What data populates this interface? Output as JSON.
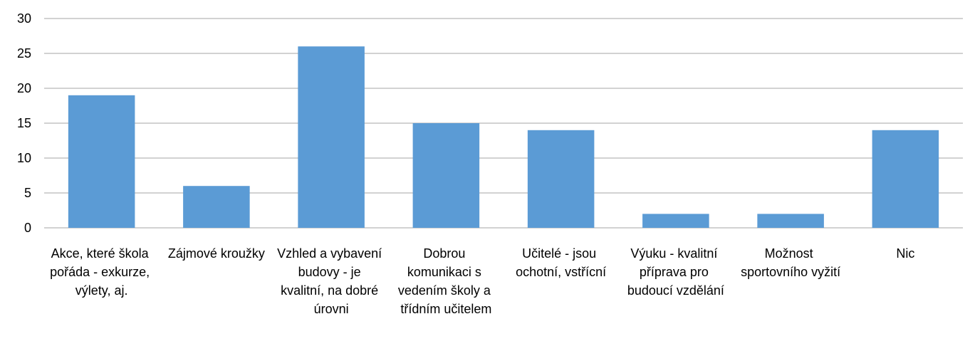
{
  "chart_data": {
    "type": "bar",
    "categories": [
      "Akce, které škola pořáda - exkurze, výlety, aj.",
      "Zájmové kroužky",
      "Vzhled a vybavení budovy - je kvalitní, na dobré úrovni",
      "Dobrou komunikaci s vedením školy a třídním učitelem",
      "Učitelé - jsou ochotní, vstřícní",
      "Výuku - kvalitní příprava pro budoucí vzdělání",
      "Možnost sportovního vyžití",
      "Nic"
    ],
    "values": [
      19,
      6,
      26,
      15,
      14,
      2,
      2,
      14
    ],
    "color": "#5b9bd5",
    "ylim": [
      0,
      30
    ],
    "yticks": [
      0,
      5,
      10,
      15,
      20,
      25,
      30
    ],
    "grid": true
  }
}
